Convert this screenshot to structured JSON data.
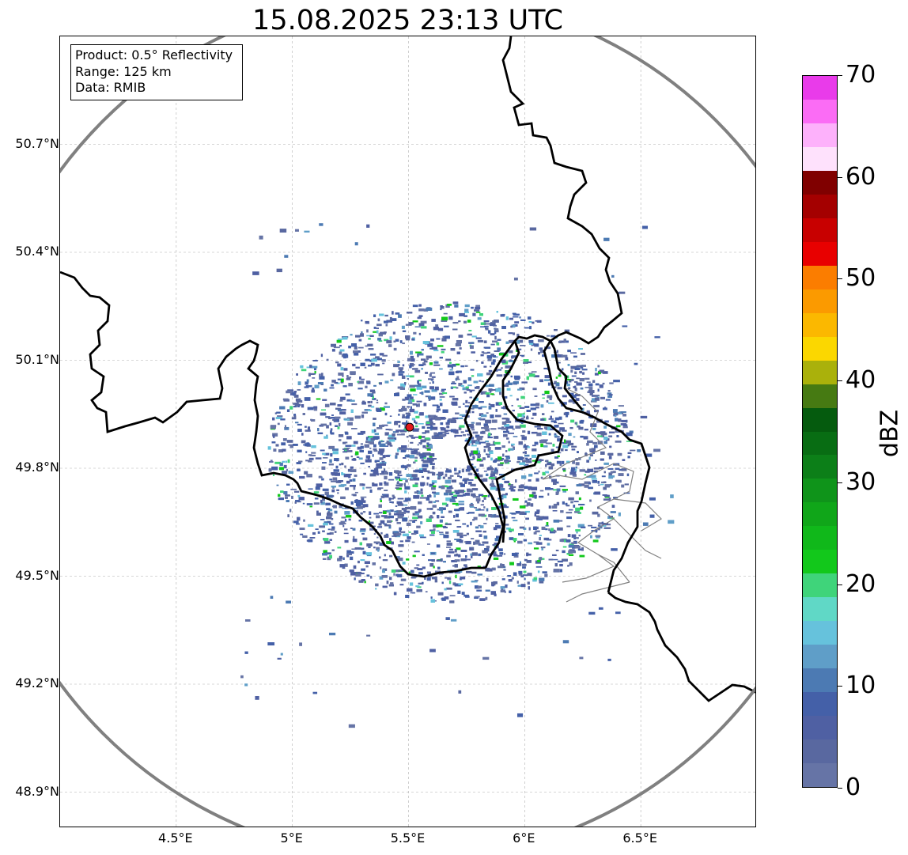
{
  "title": "15.08.2025 23:13 UTC",
  "info": {
    "product": "Product: 0.5° Reflectivity",
    "range": "Range: 125 km",
    "data": "Data: RMIB"
  },
  "map": {
    "lon_range": [
      4.0,
      7.0
    ],
    "lat_range": [
      48.8,
      51.0
    ],
    "radar_site": {
      "lon": 5.505,
      "lat": 49.914,
      "color": "#e31a1c"
    },
    "range_ring_color": "#808080",
    "border_color": "#000000",
    "admin_border_color": "#808080",
    "grid": true
  },
  "axes": {
    "lat_ticks": [
      "50.7°N",
      "50.4°N",
      "50.1°N",
      "49.8°N",
      "49.5°N",
      "49.2°N",
      "48.9°N"
    ],
    "lat_values": [
      50.7,
      50.4,
      50.1,
      49.8,
      49.5,
      49.2,
      48.9
    ],
    "lon_ticks": [
      "4.5°E",
      "5°E",
      "5.5°E",
      "6°E",
      "6.5°E"
    ],
    "lon_values": [
      4.5,
      5.0,
      5.5,
      6.0,
      6.5
    ]
  },
  "colorbar": {
    "label": "dBZ",
    "min": 0,
    "max": 70,
    "ticks": [
      "0",
      "10",
      "20",
      "30",
      "40",
      "50",
      "60",
      "70"
    ],
    "colors": [
      "#6674a6",
      "#5968a0",
      "#4f60a3",
      "#4460a8",
      "#4c7ab3",
      "#5f9ec8",
      "#66c2dc",
      "#60d8c6",
      "#3fd47a",
      "#12c81b",
      "#10b81a",
      "#10a619",
      "#0f941a",
      "#0c7f18",
      "#086d13",
      "#055b0e",
      "#467a12",
      "#aab10b",
      "#fbd700",
      "#fbb800",
      "#fb9a00",
      "#fb7d00",
      "#e80000",
      "#c80000",
      "#a40000",
      "#800000",
      "#fee1fc",
      "#fdb1fb",
      "#fb6cf5",
      "#e93bea"
    ]
  },
  "chart_data": {
    "type": "heatmap",
    "title": "15.08.2025 23:13 UTC",
    "colorbar_label": "dBZ",
    "colorbar_range": [
      0,
      70
    ],
    "dominant_values_dbz": [
      0,
      10
    ],
    "max_observed_dbz": 25
  }
}
